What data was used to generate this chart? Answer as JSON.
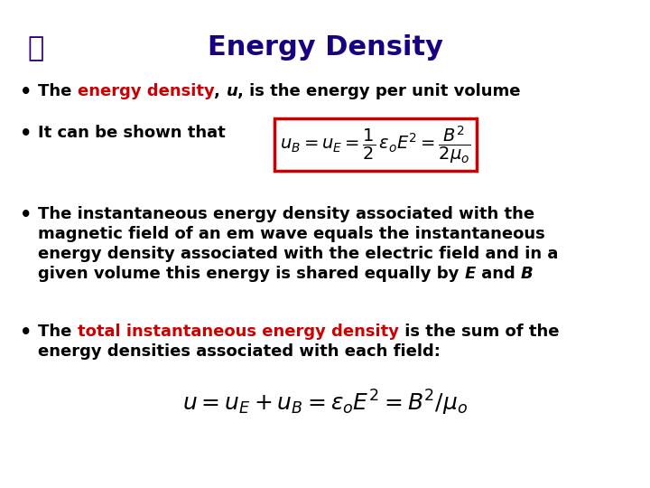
{
  "background_color": "#ffffff",
  "title": "Energy Density",
  "title_color": "#1a0080",
  "title_fontsize": 22,
  "box_eq": "$u_B = u_E = \\dfrac{1}{2}\\,_o\\,\\varepsilon^2 E = \\dfrac{B^2}{2\\mu_o}$",
  "bottom_eq": "$u =u_E + u_B = \\varepsilon_o E^2 = B^2 / \\mu_o$",
  "box_color": "#cc0000",
  "red_color": "#cc0000",
  "text_color": "#000000",
  "font_size_body": 13,
  "font_size_eq_box": 13,
  "font_size_bottom_eq": 18
}
